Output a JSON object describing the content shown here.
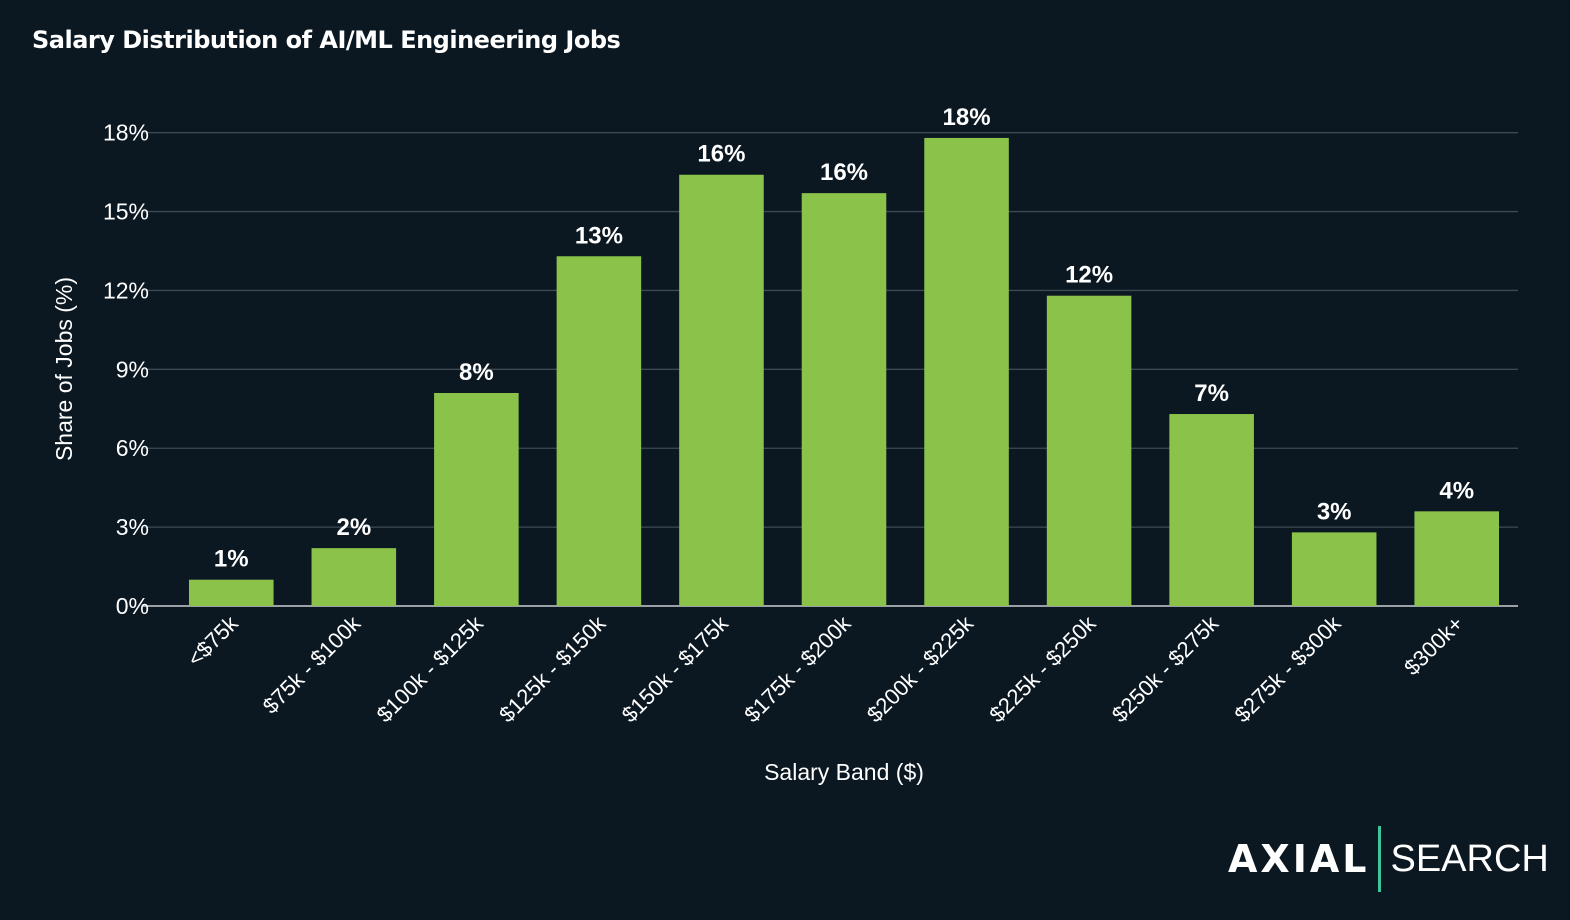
{
  "chart_data": {
    "type": "bar",
    "title": "Salary Distribution of AI/ML Engineering Jobs",
    "xlabel": "Salary Band ($)",
    "ylabel": "Share of Jobs (%)",
    "categories": [
      "<$75k",
      "$75k - $100k",
      "$100k - $125k",
      "$125k - $150k",
      "$150k - $175k",
      "$175k - $200k",
      "$200k - $225k",
      "$225k - $250k",
      "$250k - $275k",
      "$275k - $300k",
      "$300k+"
    ],
    "values": [
      1.0,
      2.2,
      8.1,
      13.3,
      16.4,
      15.7,
      17.8,
      11.8,
      7.3,
      2.8,
      3.6
    ],
    "data_labels": [
      "1%",
      "2%",
      "8%",
      "13%",
      "16%",
      "16%",
      "18%",
      "12%",
      "7%",
      "3%",
      "4%"
    ],
    "yticks": [
      0,
      3,
      6,
      9,
      12,
      15,
      18
    ],
    "ytick_labels": [
      "0%",
      "3%",
      "6%",
      "9%",
      "12%",
      "15%",
      "18%"
    ],
    "ylim": [
      0,
      18.9
    ],
    "grid": "horizontal",
    "legend": "none",
    "bar_color": "#8bc34a",
    "grid_color": "#3d4a55",
    "background": "#0b1822"
  },
  "logo": {
    "brand": "AXIAL",
    "product": "SEARCH",
    "divider_color": "#3cc59a"
  }
}
